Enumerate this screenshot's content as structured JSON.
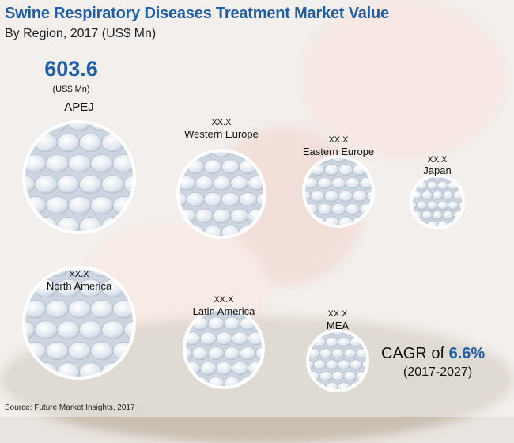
{
  "header": {
    "title": "Swine Respiratory Diseases Treatment Market Value",
    "subtitle": "By Region, 2017 (US$ Mn)"
  },
  "highlight": {
    "value": "603.6",
    "unit": "(US$ Mn)"
  },
  "cagr": {
    "label": "CAGR of",
    "value": "6.6%",
    "period": "(2017-2027)"
  },
  "source": "Source: Future Market Insights, 2017",
  "colors": {
    "title": "#1f5fa8",
    "bubble_edge": "#ffffff",
    "pill": "#dfe6ee"
  },
  "chart_data": {
    "type": "bubble",
    "title": "Swine Respiratory Diseases Treatment Market Value",
    "subtitle": "By Region, 2017 (US$ Mn)",
    "series": [
      {
        "values": [
          {
            "label": "APEJ",
            "value": 603.6,
            "value_text": "603.6"
          },
          {
            "label": "Western Europe",
            "value": null,
            "value_text": "XX.X"
          },
          {
            "label": "Eastern Europe",
            "value": null,
            "value_text": "XX.X"
          },
          {
            "label": "Japan",
            "value": null,
            "value_text": "XX.X"
          },
          {
            "label": "North America",
            "value": null,
            "value_text": "XX.X"
          },
          {
            "label": "Latin America",
            "value": null,
            "value_text": "XX.X"
          },
          {
            "label": "MEA",
            "value": null,
            "value_text": "XX.X"
          }
        ]
      }
    ]
  }
}
